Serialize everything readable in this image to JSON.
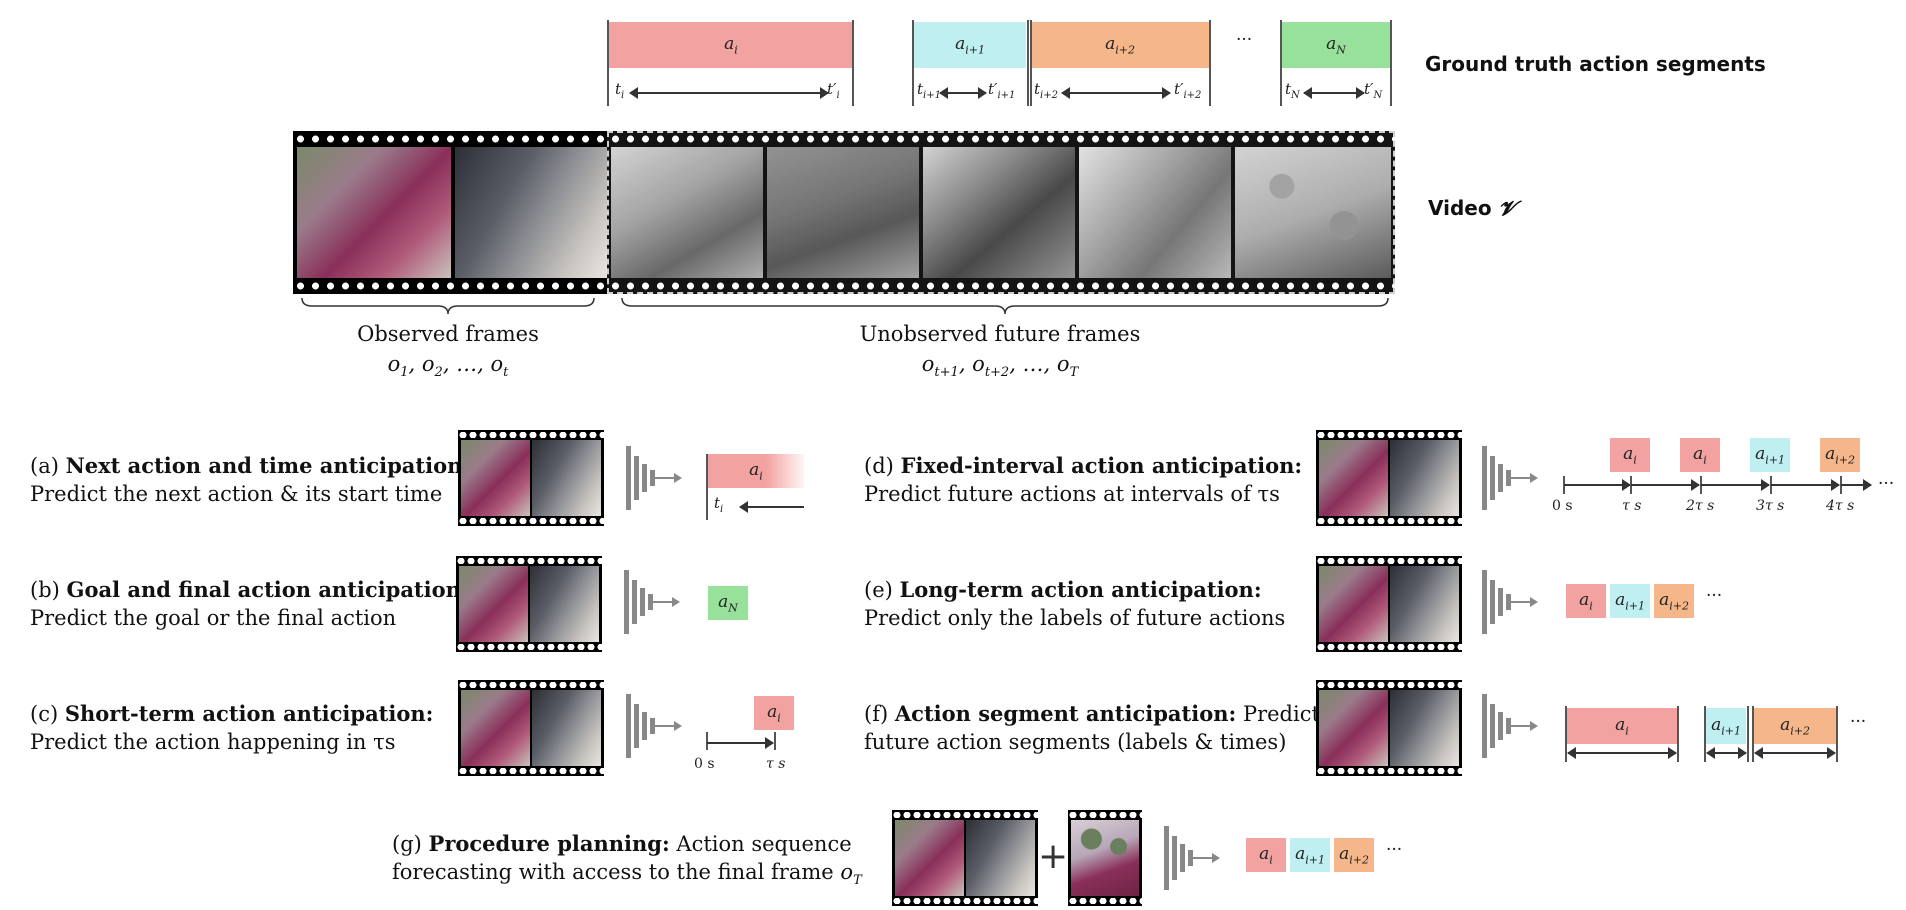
{
  "header": {
    "gt_label": "Ground truth action segments",
    "video_label": "Video",
    "video_symbol": "𝓥",
    "observed_label": "Observed frames",
    "unobserved_label": "Unobserved future frames"
  },
  "segments": {
    "a_i": "a",
    "sub_i": "i",
    "sub_i1": "i+1",
    "sub_i2": "i+2",
    "sub_N": "N",
    "ellipsis": "···"
  },
  "tasks": {
    "a": {
      "prefix": "(a)",
      "title": "Next action and time anticipation:",
      "desc": "Predict the next action & its start time"
    },
    "b": {
      "prefix": "(b)",
      "title": "Goal and final action anticipation:",
      "desc": "Predict the goal or the final action"
    },
    "c": {
      "prefix": "(c)",
      "title": "Short-term action anticipation:",
      "desc": "Predict the action happening in τs"
    },
    "d": {
      "prefix": "(d)",
      "title": "Fixed-interval action anticipation:",
      "desc": "Predict future actions at intervals of τs"
    },
    "e": {
      "prefix": "(e)",
      "title": "Long-term action anticipation:",
      "desc": "Predict only the labels of future actions"
    },
    "f": {
      "prefix": "(f)",
      "title": "Action segment anticipation:",
      "desc_1": "Predict",
      "desc_2": "future action segments (labels & times)"
    },
    "g": {
      "prefix": "(g)",
      "title": "Procedure planning:",
      "desc_1": "Action sequence",
      "desc_2": "forecasting with access to the final frame"
    }
  },
  "axis": {
    "zero": "0 s",
    "tau": "τ s",
    "tau2": "2τ s",
    "tau3": "3τ s",
    "tau4": "4τ s"
  },
  "plus": "+",
  "colors": {
    "pink": "#f2a2a0",
    "cyan": "#bfeff0",
    "orange": "#f5b68a",
    "green": "#98e19a"
  }
}
